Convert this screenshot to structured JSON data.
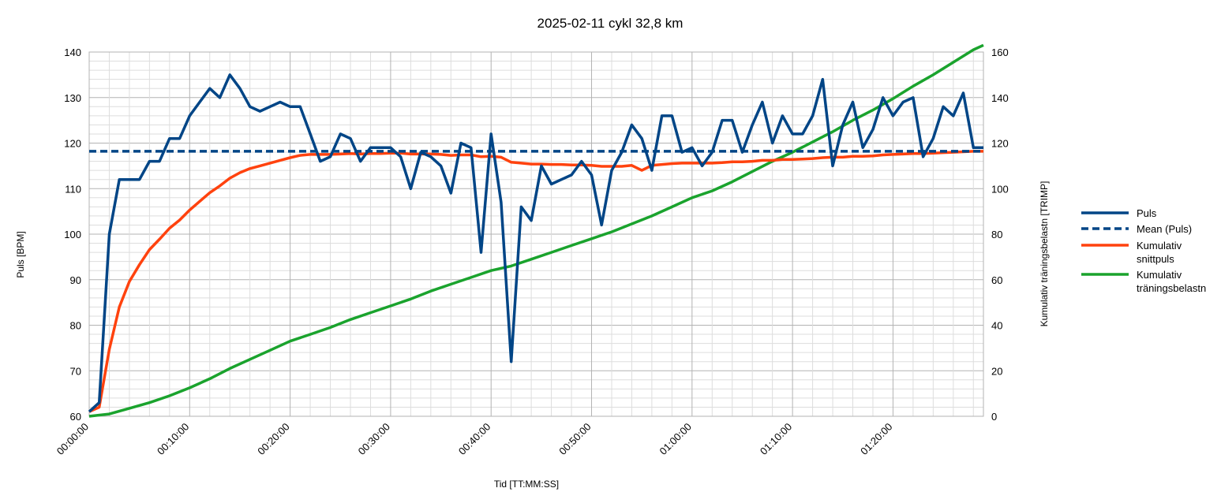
{
  "chart_data": {
    "type": "line",
    "title": "2025-02-11 cykl 32,8 km",
    "xlabel": "Tid [TT:MM:SS]",
    "ylabel": "Puls [BPM]",
    "y2label": "Kumulativ träningsbelastn [TRIMP]",
    "xlim": [
      0,
      89
    ],
    "ylim": [
      60,
      140
    ],
    "y2lim": [
      0,
      160
    ],
    "x_tick_labels": [
      "00:00:00",
      "00:10:00",
      "00:20:00",
      "00:30:00",
      "00:40:00",
      "00:50:00",
      "01:00:00",
      "01:10:00",
      "01:20:00"
    ],
    "y_ticks": [
      60,
      70,
      80,
      90,
      100,
      110,
      120,
      130,
      140
    ],
    "y2_ticks": [
      0,
      20,
      40,
      60,
      80,
      100,
      120,
      140,
      160
    ],
    "grid": true,
    "legend_position": "right",
    "series": [
      {
        "name": "Puls",
        "axis": "left",
        "color": "#004586",
        "style": "solid",
        "x": [
          0,
          1,
          2,
          3,
          4,
          5,
          6,
          7,
          8,
          9,
          10,
          11,
          12,
          13,
          14,
          15,
          16,
          17,
          18,
          19,
          20,
          21,
          22,
          23,
          24,
          25,
          26,
          27,
          28,
          29,
          30,
          31,
          32,
          33,
          34,
          35,
          36,
          37,
          38,
          39,
          40,
          41,
          42,
          43,
          44,
          45,
          46,
          47,
          48,
          49,
          50,
          51,
          52,
          53,
          54,
          55,
          56,
          57,
          58,
          59,
          60,
          61,
          62,
          63,
          64,
          65,
          66,
          67,
          68,
          69,
          70,
          71,
          72,
          73,
          74,
          75,
          76,
          77,
          78,
          79,
          80,
          81,
          82,
          83,
          84,
          85,
          86,
          87,
          88,
          89
        ],
        "y": [
          61,
          63,
          100,
          112,
          112,
          112,
          116,
          116,
          121,
          121,
          126,
          129,
          132,
          130,
          135,
          132,
          128,
          127,
          128,
          129,
          128,
          128,
          122,
          116,
          117,
          122,
          121,
          116,
          119,
          119,
          119,
          117,
          110,
          118,
          117,
          115,
          109,
          120,
          119,
          96,
          122,
          107,
          72,
          106,
          103,
          115,
          111,
          112,
          113,
          116,
          113,
          102,
          114,
          118,
          124,
          121,
          114,
          126,
          126,
          118,
          119,
          115,
          118,
          125,
          125,
          118,
          124,
          129,
          120,
          126,
          122,
          122,
          126,
          134,
          115,
          124,
          129,
          119,
          123,
          130,
          126,
          129,
          130,
          117,
          121,
          128,
          126,
          131,
          119,
          119
        ]
      },
      {
        "name": "Mean (Puls)",
        "axis": "left",
        "color": "#004586",
        "style": "dashed",
        "x": [
          0,
          89
        ],
        "y": [
          118.2,
          118.2
        ]
      },
      {
        "name": "Kumulativ snittpuls",
        "axis": "left",
        "color": "#ff420e",
        "style": "solid",
        "x": [
          0,
          1,
          2,
          3,
          4,
          5,
          6,
          7,
          8,
          9,
          10,
          11,
          12,
          13,
          14,
          15,
          16,
          17,
          18,
          19,
          20,
          21,
          22,
          23,
          24,
          25,
          26,
          27,
          28,
          29,
          30,
          31,
          32,
          33,
          34,
          35,
          36,
          37,
          38,
          39,
          40,
          41,
          42,
          43,
          44,
          45,
          46,
          47,
          48,
          49,
          50,
          51,
          52,
          53,
          54,
          55,
          56,
          57,
          58,
          59,
          60,
          61,
          62,
          63,
          64,
          65,
          66,
          67,
          68,
          69,
          70,
          71,
          72,
          73,
          74,
          75,
          76,
          77,
          78,
          79,
          80,
          81,
          82,
          83,
          84,
          85,
          86,
          87,
          88,
          89
        ],
        "y": [
          61,
          62,
          74.7,
          84,
          89.6,
          93.3,
          96.6,
          98.9,
          101.3,
          103.1,
          105.3,
          107.2,
          109.1,
          110.6,
          112.3,
          113.5,
          114.4,
          115,
          115.6,
          116.2,
          116.8,
          117.3,
          117.5,
          117.5,
          117.5,
          117.6,
          117.7,
          117.6,
          117.7,
          117.7,
          117.8,
          117.8,
          117.6,
          117.6,
          117.6,
          117.5,
          117.3,
          117.4,
          117.4,
          117,
          117.1,
          116.9,
          115.8,
          115.6,
          115.4,
          115.4,
          115.3,
          115.3,
          115.2,
          115.2,
          115.1,
          114.9,
          114.9,
          114.9,
          115.1,
          114,
          115.1,
          115.3,
          115.5,
          115.6,
          115.6,
          115.6,
          115.6,
          115.7,
          115.9,
          115.9,
          116,
          116.2,
          116.2,
          116.4,
          116.4,
          116.5,
          116.6,
          116.8,
          116.9,
          116.9,
          117.1,
          117.1,
          117.2,
          117.4,
          117.5,
          117.6,
          117.7,
          117.7,
          117.8,
          117.9,
          118,
          118.1,
          118.2,
          118.2
        ]
      },
      {
        "name": "Kumulativ träningsbelastn",
        "axis": "right",
        "color": "#1aa32d",
        "style": "solid",
        "x": [
          0,
          2,
          4,
          6,
          8,
          10,
          12,
          14,
          16,
          18,
          20,
          22,
          24,
          26,
          28,
          30,
          32,
          34,
          36,
          38,
          40,
          42,
          44,
          46,
          48,
          50,
          52,
          54,
          56,
          58,
          60,
          62,
          64,
          66,
          68,
          70,
          72,
          74,
          76,
          78,
          80,
          82,
          84,
          86,
          88,
          89
        ],
        "y": [
          0,
          1,
          3.5,
          6,
          9,
          12.5,
          16.5,
          21,
          25,
          29,
          33,
          36,
          39,
          42.5,
          45.5,
          48.5,
          51.5,
          55,
          58,
          61,
          64,
          66,
          69,
          72,
          75,
          78,
          81,
          84.5,
          88,
          92,
          96,
          99,
          103,
          107.5,
          112,
          116,
          120.5,
          125,
          130,
          134.5,
          139.5,
          145,
          150,
          155.5,
          161,
          163
        ]
      }
    ]
  }
}
